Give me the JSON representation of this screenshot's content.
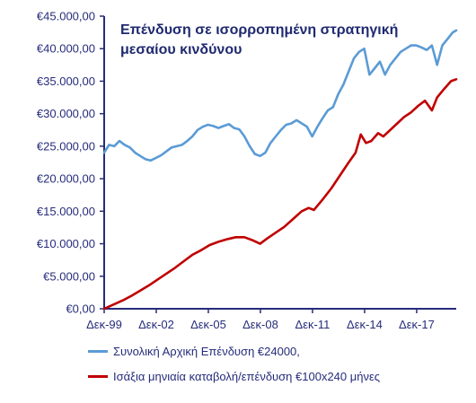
{
  "chart_data": {
    "type": "line",
    "title": "Επένδυση σε ισορροπημένη στρατηγική μεσαίου κινδύνου",
    "title_lines": [
      "Επένδυση σε ισορροπημένη στρατηγική",
      "μεσαίου κινδύνου"
    ],
    "xlabel": "",
    "ylabel": "",
    "ylim": [
      0,
      45000
    ],
    "xlim": [
      1999.92,
      2020.2
    ],
    "y_ticks": [
      "€0,00",
      "€5.000,00",
      "€10.000,00",
      "€15.000,00",
      "€20.000,00",
      "€25.000,00",
      "€30.000,00",
      "€35.000,00",
      "€40.000,00",
      "€45.000,00"
    ],
    "y_tick_values": [
      0,
      5000,
      10000,
      15000,
      20000,
      25000,
      30000,
      35000,
      40000,
      45000
    ],
    "x_ticks": [
      "Δεκ-99",
      "Δεκ-02",
      "Δεκ-05",
      "Δεκ-08",
      "Δεκ-11",
      "Δεκ-14",
      "Δεκ-17"
    ],
    "x_tick_values": [
      1999.92,
      2002.92,
      2005.92,
      2008.92,
      2011.92,
      2014.92,
      2017.92
    ],
    "grid": false,
    "legend_position": "bottom",
    "series": [
      {
        "name": "Συνολική Αρχική Επένδυση €24000,",
        "color": "#5b9bd5",
        "x": [
          1999.92,
          2000.2,
          2000.5,
          2000.8,
          2001.1,
          2001.4,
          2001.7,
          2002.0,
          2002.3,
          2002.6,
          2002.9,
          2003.2,
          2003.5,
          2003.8,
          2004.1,
          2004.4,
          2004.7,
          2005.0,
          2005.3,
          2005.6,
          2005.9,
          2006.2,
          2006.5,
          2006.8,
          2007.1,
          2007.4,
          2007.7,
          2008.0,
          2008.3,
          2008.6,
          2008.9,
          2009.2,
          2009.5,
          2009.8,
          2010.1,
          2010.4,
          2010.7,
          2011.0,
          2011.3,
          2011.6,
          2011.9,
          2012.2,
          2012.5,
          2012.8,
          2013.1,
          2013.4,
          2013.7,
          2014.0,
          2014.3,
          2014.6,
          2014.9,
          2015.2,
          2015.5,
          2015.8,
          2016.1,
          2016.4,
          2016.7,
          2017.0,
          2017.3,
          2017.6,
          2017.9,
          2018.2,
          2018.5,
          2018.8,
          2019.1,
          2019.4,
          2019.7,
          2020.0,
          2020.2
        ],
        "values": [
          24000,
          25200,
          25000,
          25800,
          25200,
          24800,
          24000,
          23500,
          23000,
          22800,
          23200,
          23600,
          24200,
          24800,
          25000,
          25200,
          25800,
          26500,
          27500,
          28000,
          28300,
          28100,
          27800,
          28100,
          28400,
          27800,
          27600,
          26500,
          25000,
          23800,
          23500,
          24000,
          25500,
          26500,
          27500,
          28300,
          28500,
          29000,
          28500,
          28000,
          26500,
          28000,
          29300,
          30500,
          31000,
          33000,
          34500,
          36500,
          38500,
          39500,
          40000,
          36000,
          37000,
          38000,
          36000,
          37500,
          38500,
          39500,
          40000,
          40500,
          40500,
          40200,
          39800,
          40500,
          37500,
          40500,
          41500,
          42500,
          42800
        ]
      },
      {
        "name": "Ισάξια μηνιαία καταβολή/επένδυση €100x240 μήνες",
        "color": "#c00000",
        "x": [
          1999.92,
          2000.5,
          2001.0,
          2001.5,
          2002.0,
          2002.5,
          2003.0,
          2003.5,
          2004.0,
          2004.5,
          2005.0,
          2005.5,
          2006.0,
          2006.5,
          2007.0,
          2007.5,
          2008.0,
          2008.5,
          2008.9,
          2009.3,
          2009.8,
          2010.3,
          2010.8,
          2011.3,
          2011.7,
          2012.0,
          2012.5,
          2013.0,
          2013.5,
          2014.0,
          2014.4,
          2014.7,
          2015.0,
          2015.3,
          2015.7,
          2016.0,
          2016.4,
          2016.8,
          2017.2,
          2017.6,
          2018.0,
          2018.4,
          2018.8,
          2019.1,
          2019.5,
          2019.9,
          2020.2
        ],
        "values": [
          0,
          700,
          1300,
          2000,
          2800,
          3600,
          4500,
          5400,
          6300,
          7300,
          8300,
          9000,
          9800,
          10300,
          10700,
          11000,
          11000,
          10500,
          10000,
          10800,
          11700,
          12600,
          13800,
          15000,
          15500,
          15200,
          16800,
          18500,
          20500,
          22500,
          24000,
          26800,
          25500,
          25800,
          27000,
          26500,
          27500,
          28500,
          29500,
          30200,
          31200,
          32000,
          30500,
          32500,
          33800,
          35000,
          35300
        ]
      }
    ]
  }
}
